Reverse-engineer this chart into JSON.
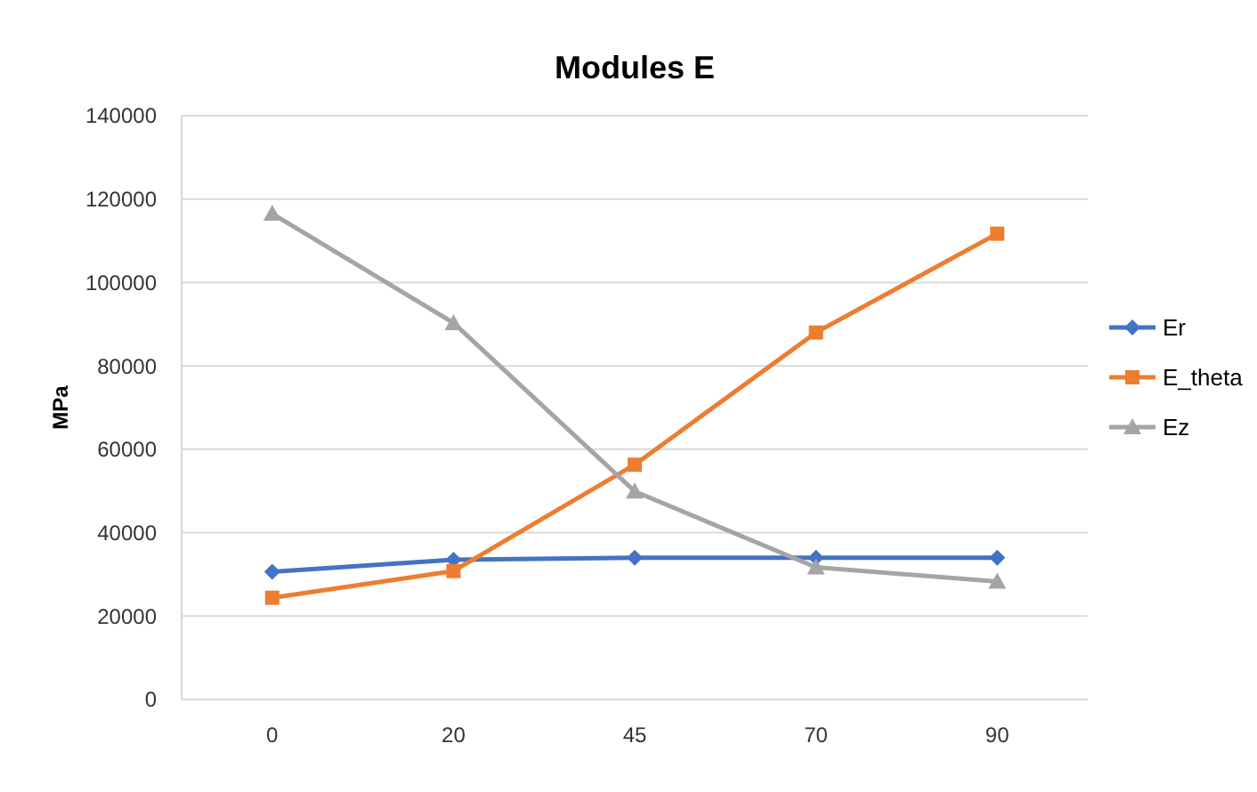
{
  "chart_data": {
    "type": "line",
    "title": "Modules E",
    "ylabel": "MPa",
    "categories": [
      "0",
      "20",
      "45",
      "70",
      "90"
    ],
    "series": [
      {
        "name": "Er",
        "color": "#4472c4",
        "marker": "diamond",
        "values": [
          30600,
          33500,
          34000,
          34000,
          34000
        ]
      },
      {
        "name": "E_theta",
        "color": "#ed7d31",
        "marker": "square",
        "values": [
          24400,
          30800,
          56300,
          88000,
          111700
        ]
      },
      {
        "name": "Ez",
        "color": "#a5a5a5",
        "marker": "triangle",
        "values": [
          116500,
          90300,
          49900,
          31700,
          28300
        ]
      }
    ],
    "ylim": [
      0,
      140000
    ],
    "yticks": [
      0,
      20000,
      40000,
      60000,
      80000,
      100000,
      120000,
      140000
    ],
    "grid": "y",
    "legend": "right"
  }
}
